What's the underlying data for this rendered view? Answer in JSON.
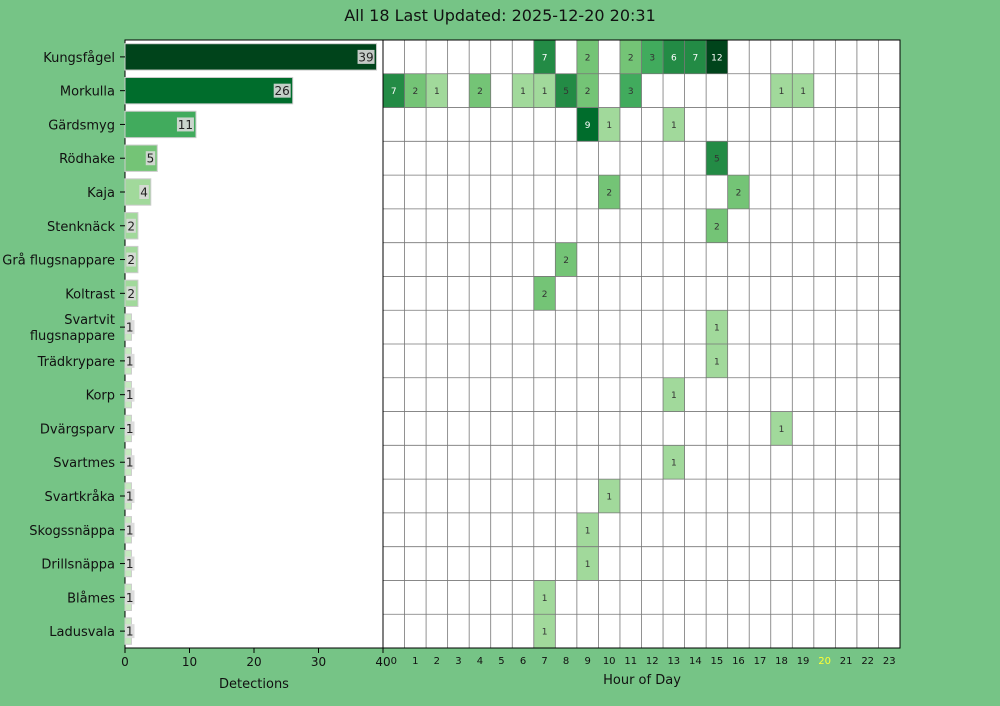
{
  "title": "All 18 Last Updated: 2025-12-20 20:31",
  "colors": {
    "background": "#76c486",
    "current_hour": "#ffff33",
    "scale": [
      "#f7fcf5",
      "#c7e9c0",
      "#a1d99b",
      "#74c476",
      "#41ab5d",
      "#238b45",
      "#006d2c",
      "#00441b"
    ]
  },
  "chart_data": [
    {
      "type": "bar",
      "orientation": "horizontal",
      "xlabel": "Detections",
      "xlim": [
        0,
        40
      ],
      "xticks": [
        0,
        10,
        20,
        30,
        40
      ],
      "categories": [
        "Kungsfågel",
        "Morkulla",
        "Gärdsmyg",
        "Rödhake",
        "Kaja",
        "Stenknäck",
        "Grå flugsnappare",
        "Koltrast",
        "Svartvit flugsnappare",
        "Trädkrypare",
        "Korp",
        "Dvärgsparv",
        "Svartmes",
        "Svartkråka",
        "Skogssnäppa",
        "Drillsnäppa",
        "Blåmes",
        "Ladusvala"
      ],
      "values": [
        39,
        26,
        11,
        5,
        4,
        2,
        2,
        2,
        1,
        1,
        1,
        1,
        1,
        1,
        1,
        1,
        1,
        1
      ]
    },
    {
      "type": "heatmap",
      "xlabel": "Hour of Day",
      "x": [
        "0",
        "1",
        "2",
        "3",
        "4",
        "5",
        "6",
        "7",
        "8",
        "9",
        "10",
        "11",
        "12",
        "13",
        "14",
        "15",
        "16",
        "17",
        "18",
        "19",
        "20",
        "21",
        "22",
        "23"
      ],
      "highlight_hour": "20",
      "rows": [
        "Kungsfågel",
        "Morkulla",
        "Gärdsmyg",
        "Rödhake",
        "Kaja",
        "Stenknäck",
        "Grå flugsnappare",
        "Koltrast",
        "Svartvit flugsnappare",
        "Trädkrypare",
        "Korp",
        "Dvärgsparv",
        "Svartmes",
        "Svartkråka",
        "Skogssnäppa",
        "Drillsnäppa",
        "Blåmes",
        "Ladusvala"
      ],
      "cells": [
        [
          0,
          7,
          7
        ],
        [
          0,
          9,
          2
        ],
        [
          0,
          11,
          2
        ],
        [
          0,
          12,
          3
        ],
        [
          0,
          13,
          6
        ],
        [
          0,
          14,
          7
        ],
        [
          0,
          15,
          12
        ],
        [
          1,
          0,
          7
        ],
        [
          1,
          1,
          2
        ],
        [
          1,
          2,
          1
        ],
        [
          1,
          4,
          2
        ],
        [
          1,
          6,
          1
        ],
        [
          1,
          7,
          1
        ],
        [
          1,
          8,
          5
        ],
        [
          1,
          9,
          2
        ],
        [
          1,
          11,
          3
        ],
        [
          1,
          18,
          1
        ],
        [
          1,
          19,
          1
        ],
        [
          2,
          9,
          9
        ],
        [
          2,
          10,
          1
        ],
        [
          2,
          13,
          1
        ],
        [
          3,
          15,
          5
        ],
        [
          4,
          10,
          2
        ],
        [
          4,
          16,
          2
        ],
        [
          5,
          15,
          2
        ],
        [
          6,
          8,
          2
        ],
        [
          7,
          7,
          2
        ],
        [
          8,
          15,
          1
        ],
        [
          9,
          15,
          1
        ],
        [
          10,
          13,
          1
        ],
        [
          11,
          18,
          1
        ],
        [
          12,
          13,
          1
        ],
        [
          13,
          10,
          1
        ],
        [
          14,
          9,
          1
        ],
        [
          15,
          9,
          1
        ],
        [
          16,
          7,
          1
        ],
        [
          17,
          7,
          1
        ]
      ]
    }
  ]
}
